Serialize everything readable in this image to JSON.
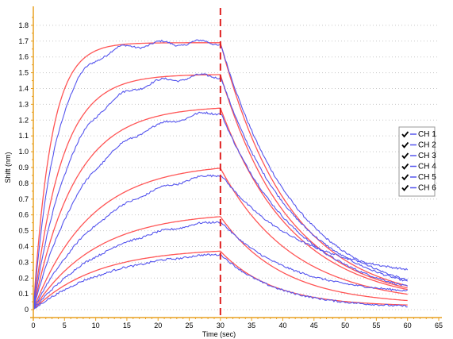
{
  "chart_data": {
    "type": "line",
    "title": "",
    "xlabel": "Time (sec)",
    "ylabel": "Shift (nm)",
    "xlim": [
      0,
      65
    ],
    "ylim": [
      -0.05,
      1.9
    ],
    "x_ticks": [
      0,
      5,
      10,
      15,
      20,
      25,
      30,
      35,
      40,
      45,
      50,
      55,
      60,
      65
    ],
    "y_ticks": [
      0,
      0.1,
      0.2,
      0.3,
      0.4,
      0.5,
      0.6,
      0.7,
      0.8,
      0.9,
      1.0,
      1.1,
      1.2,
      1.3,
      1.4,
      1.5,
      1.6,
      1.7,
      1.8
    ],
    "y_tick_labels": [
      "0",
      "0.1",
      "0.2",
      "0.3",
      "0.4",
      "0.5",
      "0.6",
      "0.7",
      "0.8",
      "0.9",
      "1.0",
      "1.1",
      "1.2",
      "1.3",
      "1.4",
      "1.5",
      "1.6",
      "1.7",
      "1.8"
    ],
    "grid": "horizontal-dotted",
    "legend_position": "right",
    "injection_marker_x": 30,
    "colors": {
      "measured": "#5555ee",
      "fit": "#ff5555",
      "marker": "#e02020",
      "axis": "#e8a020"
    },
    "series": [
      {
        "name": "CH 1",
        "association_plateau": 1.69,
        "association_k": 0.35,
        "dissociation_end": 0.04,
        "dissociation_k": 0.09,
        "noise_end": 0.05
      },
      {
        "name": "CH 2",
        "association_plateau": 1.49,
        "association_k": 0.22,
        "dissociation_end": 0.04,
        "dissociation_k": 0.09,
        "noise_end": 0.06
      },
      {
        "name": "CH 3",
        "association_plateau": 1.29,
        "association_k": 0.15,
        "dissociation_end": 0.03,
        "dissociation_k": 0.085,
        "noise_end": 0.03
      },
      {
        "name": "CH 4",
        "association_plateau": 0.93,
        "association_k": 0.11,
        "dissociation_end": 0.03,
        "dissociation_k": 0.085,
        "noise_end": 0.19
      },
      {
        "name": "CH 5",
        "association_plateau": 0.62,
        "association_k": 0.1,
        "dissociation_end": 0.03,
        "dissociation_k": 0.1,
        "noise_end": 0.09
      },
      {
        "name": "CH 6",
        "association_plateau": 0.39,
        "association_k": 0.1,
        "dissociation_end": 0.02,
        "dissociation_k": 0.12,
        "noise_end": 0.01
      }
    ]
  }
}
